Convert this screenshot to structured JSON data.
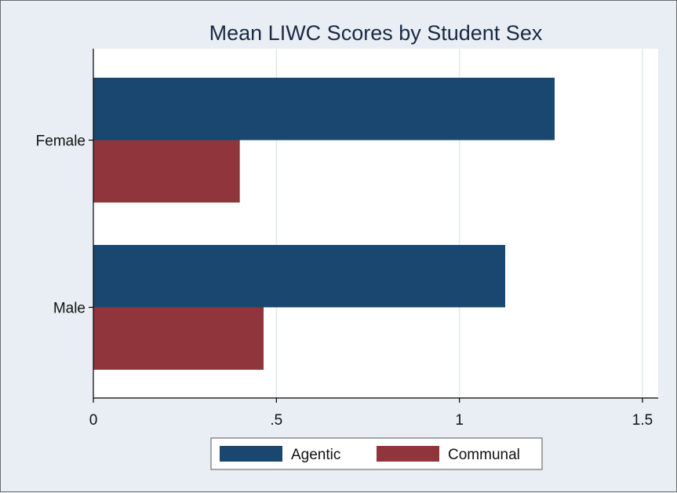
{
  "chart_data": {
    "type": "bar",
    "orientation": "horizontal",
    "title": "Mean LIWC Scores by Student Sex",
    "categories": [
      "Female",
      "Male"
    ],
    "series": [
      {
        "name": "Agentic",
        "color": "#1a476f",
        "values": [
          1.26,
          1.125
        ]
      },
      {
        "name": "Communal",
        "color": "#90353b",
        "values": [
          0.4,
          0.465
        ]
      }
    ],
    "xlim": [
      0,
      1.55
    ],
    "xticks": [
      0,
      0.5,
      1,
      1.5
    ],
    "xtick_labels": [
      "0",
      ".5",
      "1",
      "1.5"
    ],
    "xlabel": "",
    "ylabel": "",
    "grid": true,
    "legend_position": "bottom"
  }
}
